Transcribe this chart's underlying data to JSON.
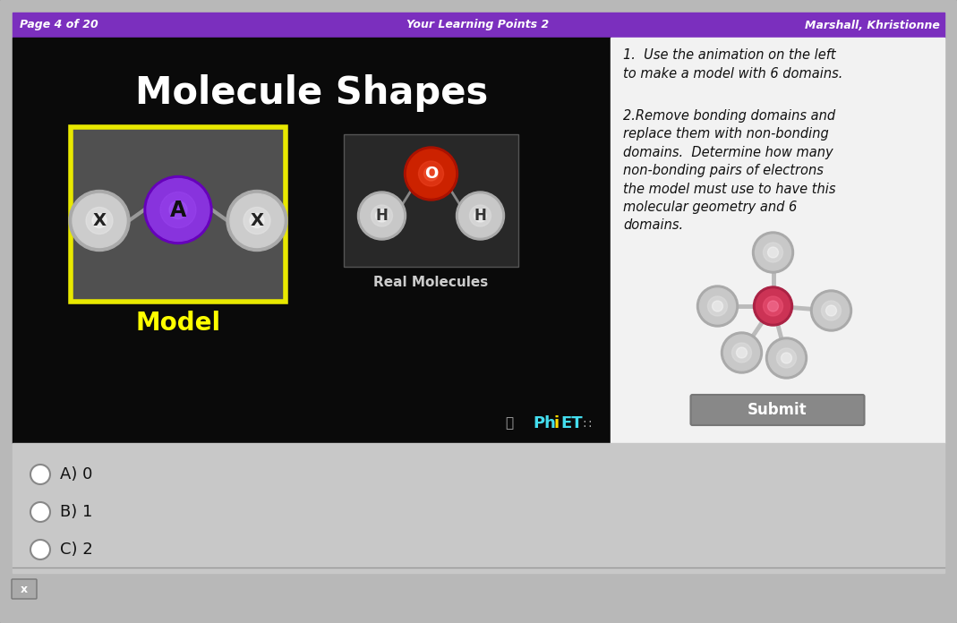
{
  "header_bg": "#7B2FBE",
  "header_text_color": "#FFFFFF",
  "header_left": "Page 4 of 20",
  "header_center": "Your Learning Points 2",
  "header_right": "Marshall, Khristionne",
  "left_bg": "#0A0A0A",
  "right_bg": "#F2F2F2",
  "title_text": "Molecule Shapes",
  "title_color": "#FFFFFF",
  "model_label": "Model",
  "real_label": "Real Molecules",
  "right_text1": "1.  Use the animation on the left\nto make a model with 6 domains.",
  "right_text2": "2.Remove bonding domains and\nreplace them with non-bonding\ndomains.  Determine how many\nnon-bonding pairs of electrons\nthe model must use to have this\nmolecular geometry and 6\ndomains.",
  "submit_label": "Submit",
  "choices": [
    "A) 0",
    "B) 1",
    "C) 2"
  ],
  "outer_bg": "#B8B8B8",
  "bottom_bg": "#C8C8C8",
  "model_box_border": "#E8E800",
  "model_box_bg": "#505050",
  "real_box_bg": "#282828"
}
